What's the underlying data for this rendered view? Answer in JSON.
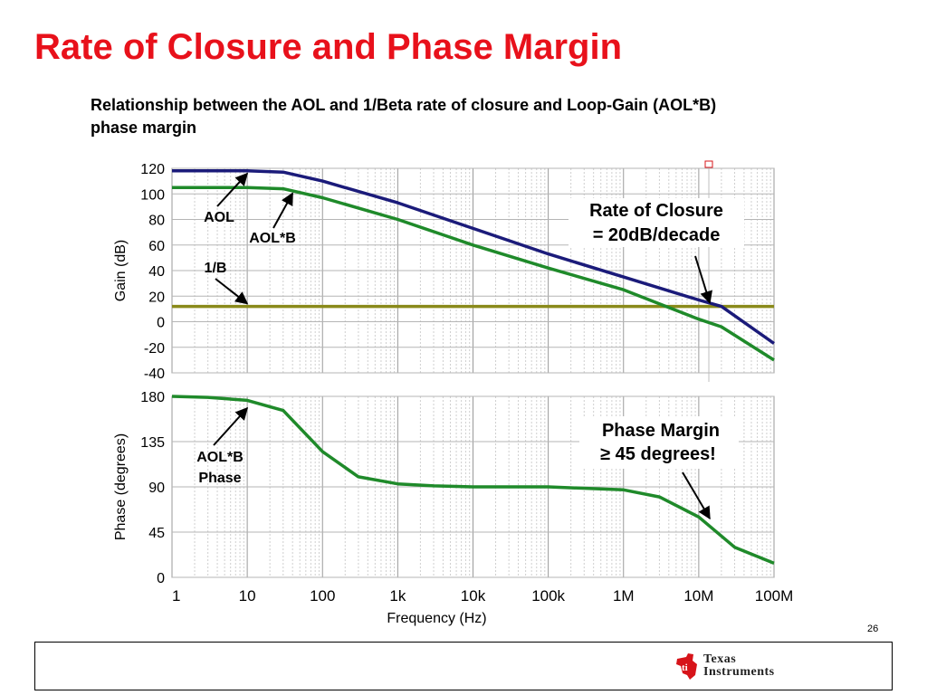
{
  "slide": {
    "title": "Rate of Closure and Phase Margin",
    "subtitle": "Relationship between the AOL and 1/Beta rate of closure and Loop-Gain (AOL*B) phase margin",
    "page_number": "26",
    "brand_line1": "Texas",
    "brand_line2": "Instruments"
  },
  "colors": {
    "title": "#e8111b",
    "aol": "#1b1b7a",
    "aolb": "#1f8a2a",
    "beta": "#8a8a1a",
    "phase": "#1f8a2a"
  },
  "chart_data": [
    {
      "type": "line",
      "x_scale": "log",
      "xlim": [
        1,
        100000000
      ],
      "xlabel": "",
      "ylabel": "Gain (dB)",
      "ylim": [
        -40,
        120
      ],
      "yticks": [
        120,
        100,
        80,
        60,
        40,
        20,
        0,
        -20,
        -40
      ],
      "grid": true,
      "series": [
        {
          "name": "AOL",
          "x": [
            1,
            10,
            30,
            100,
            1000,
            10000,
            100000,
            1000000,
            10000000,
            20000000,
            100000000
          ],
          "values": [
            118,
            118,
            117,
            110,
            93,
            73,
            53,
            35,
            17,
            12,
            -17
          ]
        },
        {
          "name": "AOL*B",
          "x": [
            1,
            10,
            30,
            100,
            1000,
            10000,
            100000,
            1000000,
            3000000,
            10000000,
            20000000,
            100000000
          ],
          "values": [
            105,
            105,
            104,
            97,
            80,
            60,
            42,
            25,
            14,
            2,
            -4,
            -30
          ]
        },
        {
          "name": "1/B",
          "x": [
            1,
            100000000
          ],
          "values": [
            12,
            12
          ]
        }
      ],
      "annotations": [
        {
          "label": "AOL",
          "target_x": 10,
          "target_y": 118
        },
        {
          "label": "AOL*B",
          "target_x": 40,
          "target_y": 104
        },
        {
          "label": "1/B",
          "target_x": 10,
          "target_y": 12
        },
        {
          "label_line1": "Rate of Closure",
          "label_line2": "= 20dB/decade",
          "target_x": 14000000,
          "target_y": 12
        }
      ]
    },
    {
      "type": "line",
      "x_scale": "log",
      "xlim": [
        1,
        100000000
      ],
      "xlabel": "Frequency (Hz)",
      "ylabel": "Phase (degrees)",
      "ylim": [
        0,
        180
      ],
      "yticks": [
        180,
        135,
        90,
        45,
        0
      ],
      "xtick_labels": [
        "1",
        "10",
        "100",
        "1k",
        "10k",
        "100k",
        "1M",
        "10M",
        "100M"
      ],
      "grid": true,
      "series": [
        {
          "name": "AOL*B Phase",
          "x": [
            1,
            3,
            10,
            30,
            100,
            300,
            1000,
            3000,
            10000,
            100000,
            1000000,
            3000000,
            10000000,
            30000000,
            100000000
          ],
          "values": [
            180,
            179,
            176,
            166,
            125,
            100,
            93,
            91,
            90,
            90,
            87,
            80,
            60,
            30,
            14
          ]
        }
      ],
      "annotations": [
        {
          "label_line1": "AOL*B",
          "label_line2": "Phase",
          "target_x": 10,
          "target_y": 172
        },
        {
          "label_line1": "Phase Margin",
          "label_line2": "≥ 45 degrees!",
          "target_x": 14000000,
          "target_y": 55
        }
      ]
    }
  ]
}
